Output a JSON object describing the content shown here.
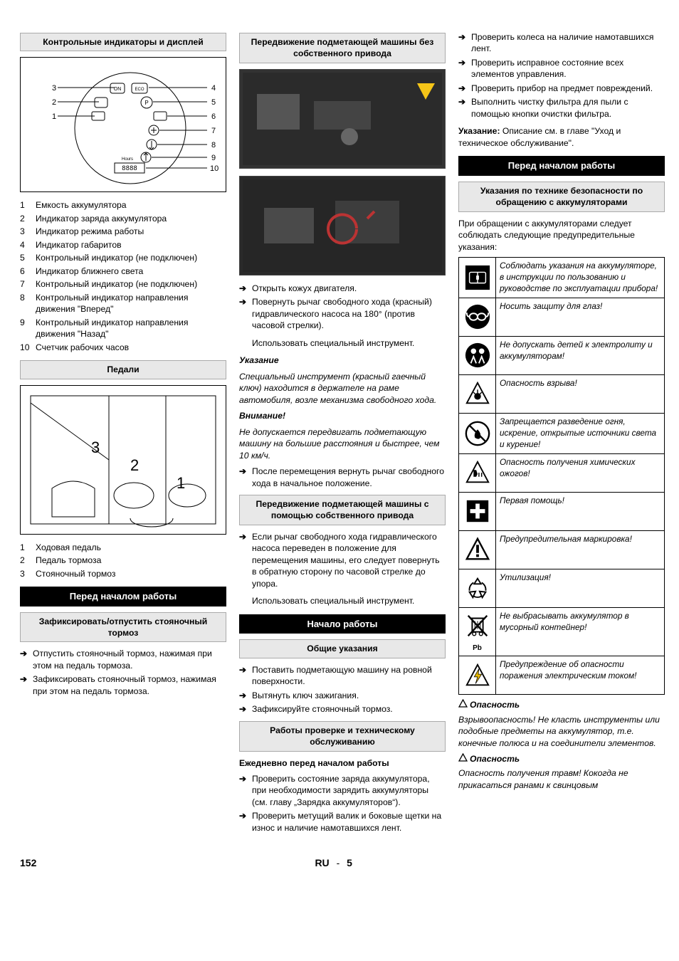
{
  "col1": {
    "h1": "Контрольные индикаторы и дисплей",
    "diagram_labels": {
      "left": [
        "3",
        "2",
        "1"
      ],
      "right": [
        "4",
        "5",
        "6",
        "7",
        "8",
        "9",
        "10"
      ],
      "inner": [
        "ON",
        "ECO",
        "P",
        "Hours",
        "8888"
      ]
    },
    "legend1": [
      {
        "n": "1",
        "t": "Емкость аккумулятора"
      },
      {
        "n": "2",
        "t": "Индикатор заряда аккумулятора"
      },
      {
        "n": "3",
        "t": "Индикатор режима работы"
      },
      {
        "n": "4",
        "t": "Индикатор габаритов"
      },
      {
        "n": "5",
        "t": "Контрольный индикатор (не подключен)"
      },
      {
        "n": "6",
        "t": "Индикатор ближнего света"
      },
      {
        "n": "7",
        "t": "Контрольный индикатор (не подключен)"
      },
      {
        "n": "8",
        "t": "Контрольный индикатор направления движения \"Вперед\""
      },
      {
        "n": "9",
        "t": "Контрольный индикатор направления движения \"Назад\""
      },
      {
        "n": "10",
        "t": "Счетчик рабочих часов"
      }
    ],
    "h2": "Педали",
    "pedals_labels": [
      "3",
      "2",
      "1"
    ],
    "legend2": [
      {
        "n": "1",
        "t": "Ходовая педаль"
      },
      {
        "n": "2",
        "t": "Педаль тормоза"
      },
      {
        "n": "3",
        "t": "Стояночный тормоз"
      }
    ],
    "hblack": "Перед началом работы",
    "h3": "Зафиксировать/отпустить стояночный тормоз",
    "arrows1": [
      "Отпустить стояночный тормоз, нажимая при этом на педаль тормоза.",
      "Зафиксировать стояночный тормоз, нажимая при этом на педаль тормоза."
    ]
  },
  "col2": {
    "h1": "Передвижение подметающей машины без собственного привода",
    "arrows1": [
      "Открыть кожух двигателя.",
      "Повернуть рычаг свободного хода (красный) гидравлического насоса на 180° (против часовой стрелки)."
    ],
    "arrows1_sub": "Использовать специальный инструмент.",
    "note_h": "Указание",
    "note_p": "Специальный инструмент (красный гаечный ключ) находится в держателе на раме автомобиля, возле механизма свободного хода.",
    "warn_h": "Внимание!",
    "warn_p": "Не допускается передвигать подметающую машину на большие расстояния и быстрее, чем 10 км/ч.",
    "arrows2": [
      "После перемещения вернуть рычаг свободного хода в начальное положение."
    ],
    "h2": "Передвижение подметающей машины с помощью собственного привода",
    "arrows3": [
      "Если рычаг свободного хода гидравлического насоса переведен в положение для перемещения машины, его следует повернуть в обратную сторону по часовой стрелке до упора."
    ],
    "arrows3_sub": "Использовать специальный инструмент.",
    "hblack": "Начало работы",
    "h3": "Общие указания",
    "arrows4": [
      "Поставить подметающую машину на ровной поверхности.",
      "Вытянуть ключ зажигания.",
      "Зафиксируйте стояночный тормоз."
    ],
    "h4": "Работы проверке и техническому обслуживанию",
    "daily_h": "Ежедневно перед началом работы",
    "arrows5": [
      "Проверить состояние заряда аккумулятора, при необходимости зарядить аккумуляторы (см. главу „Зарядка аккумуляторов“).",
      "Проверить метущий валик и боковые щетки на износ и наличие намотавшихся лент."
    ]
  },
  "col3": {
    "arrows1": [
      "Проверить колеса на наличие намотавшихся лент.",
      "Проверить исправное состояние всех элементов управления.",
      "Проверить прибор на предмет повреждений.",
      "Выполнить чистку фильтра для пыли с помощью кнопки очистки фильтра."
    ],
    "note_line": "Указание: Описание см. в главе \"Уход и техническое обслуживание\".",
    "note_label": "Указание:",
    "note_rest": " Описание см. в главе \"Уход и техническое обслуживание\".",
    "hblack": "Перед началом работы",
    "h1": "Указания по технике безопасности по обращению с аккумуляторами",
    "intro": "При обращении с аккумуляторами следует соблюдать следующие предупредительные указания:",
    "safety": [
      {
        "icon": "book",
        "t": "Соблюдать указания на аккумуляторе, в инструкции по пользованию и руководстве по эксплуатации прибора!"
      },
      {
        "icon": "goggles",
        "t": "Носить защиту для глаз!"
      },
      {
        "icon": "children",
        "t": "Не допускать детей к электролиту и аккумуляторам!"
      },
      {
        "icon": "explosion",
        "t": "Опасность взрыва!"
      },
      {
        "icon": "nofire",
        "t": "Запрещается разведение огня, искрение, открытые источники света и курение!"
      },
      {
        "icon": "corrosive",
        "t": "Опасность получения химических ожогов!"
      },
      {
        "icon": "firstaid",
        "t": "Первая помощь!"
      },
      {
        "icon": "warning",
        "t": "Предупредительная маркировка!"
      },
      {
        "icon": "recycle",
        "t": "Утилизация!"
      },
      {
        "icon": "nobin",
        "t": "Не выбрасывать аккумулятор в мусорный контейнер!",
        "sub": "Pb"
      },
      {
        "icon": "bolt",
        "t": "Предупреждение об опасности поражения электрическим током!"
      }
    ],
    "danger1_h": "Опасность",
    "danger1_p": "Взрывоопасность! Не класть инструменты или подобные предметы на аккумулятор, т.е. конечные полюса и на соединители элементов.",
    "danger2_h": "Опасность",
    "danger2_p": "Опасность получения травм! Кокогда не прикасаться ранами к свинцовым"
  },
  "footer": {
    "page": "152",
    "lang": "RU",
    "sub": "5"
  }
}
